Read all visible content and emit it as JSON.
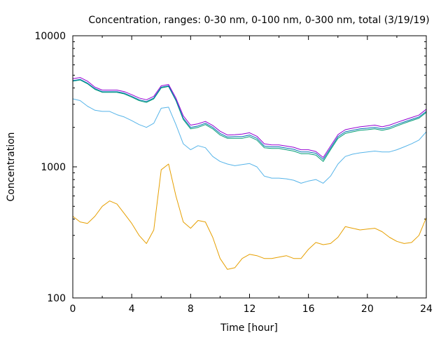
{
  "chart_data": {
    "type": "line",
    "title": "Concentration, ranges: 0-30 nm, 0-100 nm, 0-300 nm, total (3/19/19)",
    "xlabel": "Time [hour]",
    "ylabel": "Concentration",
    "xlim": [
      0,
      24
    ],
    "ylim": [
      100,
      10000
    ],
    "yscale": "log",
    "grid": false,
    "legend": "none",
    "x_ticks": [
      "0",
      "4",
      "8",
      "12",
      "16",
      "20",
      "24"
    ],
    "x_tick_values": [
      0,
      4,
      8,
      12,
      16,
      20,
      24
    ],
    "y_ticks": [
      "100",
      "1000",
      "10000"
    ],
    "y_tick_values": [
      100,
      1000,
      10000
    ],
    "x": [
      0,
      0.5,
      1,
      1.5,
      2,
      2.5,
      3,
      3.5,
      4,
      4.5,
      5,
      5.5,
      6,
      6.5,
      7,
      7.5,
      8,
      8.5,
      9,
      9.5,
      10,
      10.5,
      11,
      11.5,
      12,
      12.5,
      13,
      13.5,
      14,
      14.5,
      15,
      15.5,
      16,
      16.5,
      17,
      17.5,
      18,
      18.5,
      19,
      19.5,
      20,
      20.5,
      21,
      21.5,
      22,
      22.5,
      23,
      23.5,
      24
    ],
    "series": [
      {
        "color": "#e69f00",
        "values": [
          420,
          380,
          370,
          420,
          500,
          550,
          520,
          440,
          370,
          300,
          260,
          330,
          950,
          1050,
          600,
          380,
          340,
          390,
          380,
          290,
          200,
          165,
          170,
          200,
          215,
          210,
          200,
          200,
          205,
          210,
          200,
          200,
          235,
          265,
          255,
          260,
          290,
          350,
          340,
          330,
          335,
          340,
          320,
          290,
          270,
          260,
          265,
          300,
          410
        ]
      },
      {
        "color": "#56b4e9",
        "values": [
          3300,
          3200,
          2900,
          2700,
          2650,
          2650,
          2500,
          2400,
          2250,
          2100,
          2000,
          2150,
          2800,
          2850,
          2100,
          1500,
          1350,
          1450,
          1400,
          1200,
          1100,
          1050,
          1020,
          1040,
          1060,
          1000,
          850,
          820,
          820,
          810,
          790,
          750,
          780,
          800,
          750,
          850,
          1050,
          1200,
          1250,
          1280,
          1300,
          1320,
          1300,
          1300,
          1350,
          1420,
          1500,
          1600,
          1850
        ]
      },
      {
        "color": "#009e73",
        "values": [
          4500,
          4600,
          4300,
          3900,
          3700,
          3700,
          3700,
          3600,
          3400,
          3200,
          3100,
          3300,
          4000,
          4100,
          3200,
          2300,
          1950,
          2000,
          2100,
          1950,
          1750,
          1650,
          1650,
          1650,
          1700,
          1600,
          1400,
          1380,
          1380,
          1350,
          1320,
          1260,
          1260,
          1230,
          1100,
          1350,
          1650,
          1800,
          1850,
          1900,
          1920,
          1950,
          1900,
          1950,
          2050,
          2150,
          2250,
          2350,
          2600
        ]
      },
      {
        "color": "#0072b2",
        "values": [
          4550,
          4650,
          4350,
          3950,
          3750,
          3750,
          3750,
          3650,
          3450,
          3250,
          3150,
          3350,
          4050,
          4150,
          3250,
          2350,
          2000,
          2050,
          2150,
          2000,
          1800,
          1690,
          1700,
          1700,
          1750,
          1650,
          1440,
          1420,
          1420,
          1390,
          1360,
          1300,
          1300,
          1270,
          1140,
          1390,
          1700,
          1850,
          1900,
          1950,
          1970,
          2000,
          1950,
          2000,
          2100,
          2200,
          2300,
          2400,
          2650
        ]
      },
      {
        "color": "#9400d3",
        "values": [
          4700,
          4800,
          4500,
          4050,
          3850,
          3850,
          3850,
          3750,
          3550,
          3350,
          3250,
          3450,
          4150,
          4250,
          3350,
          2450,
          2080,
          2130,
          2220,
          2070,
          1870,
          1750,
          1760,
          1780,
          1820,
          1710,
          1500,
          1470,
          1470,
          1440,
          1410,
          1350,
          1350,
          1310,
          1180,
          1440,
          1760,
          1920,
          1970,
          2020,
          2050,
          2080,
          2020,
          2080,
          2180,
          2280,
          2380,
          2480,
          2750
        ]
      }
    ]
  }
}
